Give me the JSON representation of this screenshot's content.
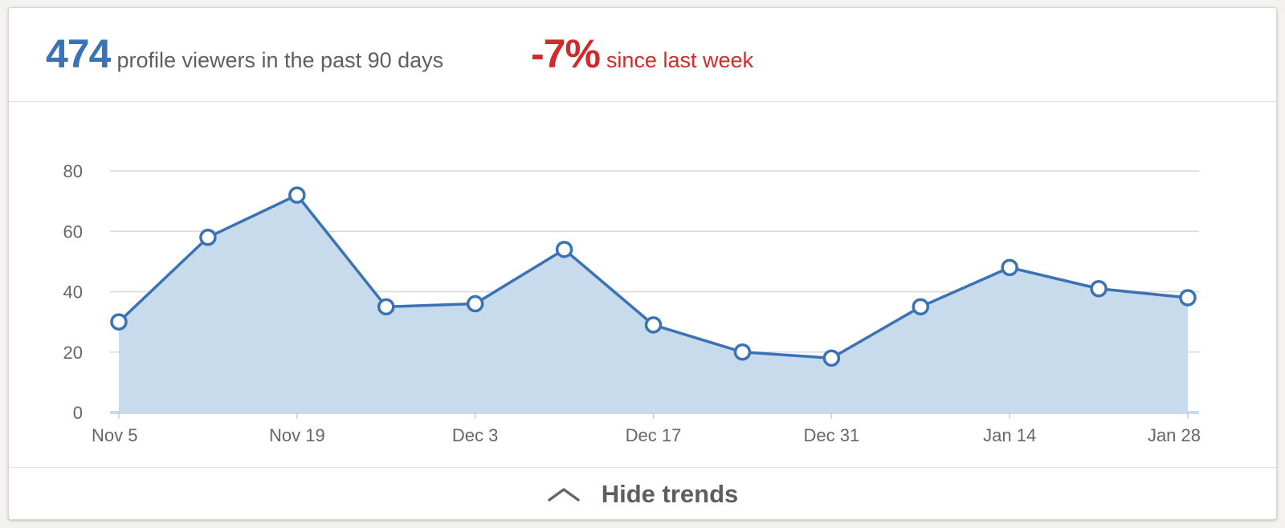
{
  "summary": {
    "viewer_count": "474",
    "viewer_label": "profile viewers in the past 90 days",
    "change_value": "-7%",
    "change_label": "since last week"
  },
  "toggle": {
    "label": "Hide trends",
    "icon": "chevron-up-icon"
  },
  "colors": {
    "line": "#3a72b3",
    "fill": "#c8dbec",
    "positive": "#3a72b3",
    "negative": "#d2292a"
  },
  "chart_data": {
    "type": "area",
    "title": "",
    "xlabel": "",
    "ylabel": "",
    "ylim": [
      0,
      80
    ],
    "yticks": [
      0,
      20,
      40,
      60,
      80
    ],
    "grid": true,
    "legend": "none",
    "x": [
      "Nov 5",
      "Nov 12",
      "Nov 19",
      "Nov 26",
      "Dec 3",
      "Dec 10",
      "Dec 17",
      "Dec 24",
      "Dec 31",
      "Jan 7",
      "Jan 14",
      "Jan 21",
      "Jan 28"
    ],
    "xtick_labels": [
      "Nov 5",
      "Nov 19",
      "Dec 3",
      "Dec 17",
      "Dec 31",
      "Jan 14",
      "Jan 28"
    ],
    "series": [
      {
        "values": [
          30,
          58,
          72,
          35,
          36,
          54,
          29,
          20,
          18,
          35,
          48,
          41,
          38
        ]
      }
    ]
  }
}
